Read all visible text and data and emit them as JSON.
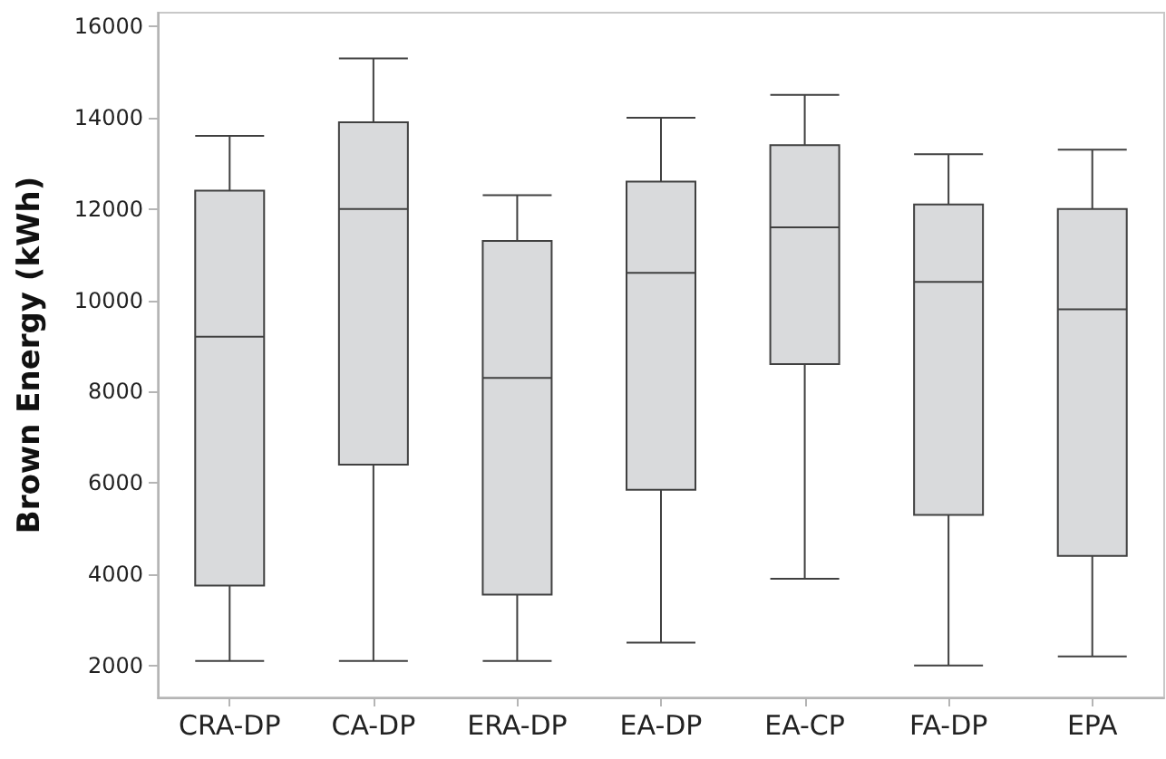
{
  "chart_data": {
    "type": "box",
    "ylabel": "Brown Energy (kWh)",
    "categories": [
      "CRA-DP",
      "CA-DP",
      "ERA-DP",
      "EA-DP",
      "EA-CP",
      "FA-DP",
      "EPA"
    ],
    "series": [
      {
        "color": "#d9dadc",
        "boxes": [
          {
            "low": 2100,
            "q1": 3750,
            "median": 9200,
            "q3": 12400,
            "high": 13600
          },
          {
            "low": 2100,
            "q1": 6400,
            "median": 12000,
            "q3": 13900,
            "high": 15300
          },
          {
            "low": 2100,
            "q1": 3550,
            "median": 8300,
            "q3": 11300,
            "high": 12300
          },
          {
            "low": 2500,
            "q1": 5850,
            "median": 10600,
            "q3": 12600,
            "high": 14000
          },
          {
            "low": 3900,
            "q1": 8600,
            "median": 11600,
            "q3": 13400,
            "high": 14500
          },
          {
            "low": 2000,
            "q1": 5300,
            "median": 10400,
            "q3": 12100,
            "high": 13200
          },
          {
            "low": 2200,
            "q1": 4400,
            "median": 9800,
            "q3": 12000,
            "high": 13300
          }
        ]
      }
    ],
    "ylim": [
      1300,
      16300
    ],
    "yticks": [
      2000,
      4000,
      6000,
      8000,
      10000,
      12000,
      14000,
      16000
    ],
    "grid": false
  }
}
